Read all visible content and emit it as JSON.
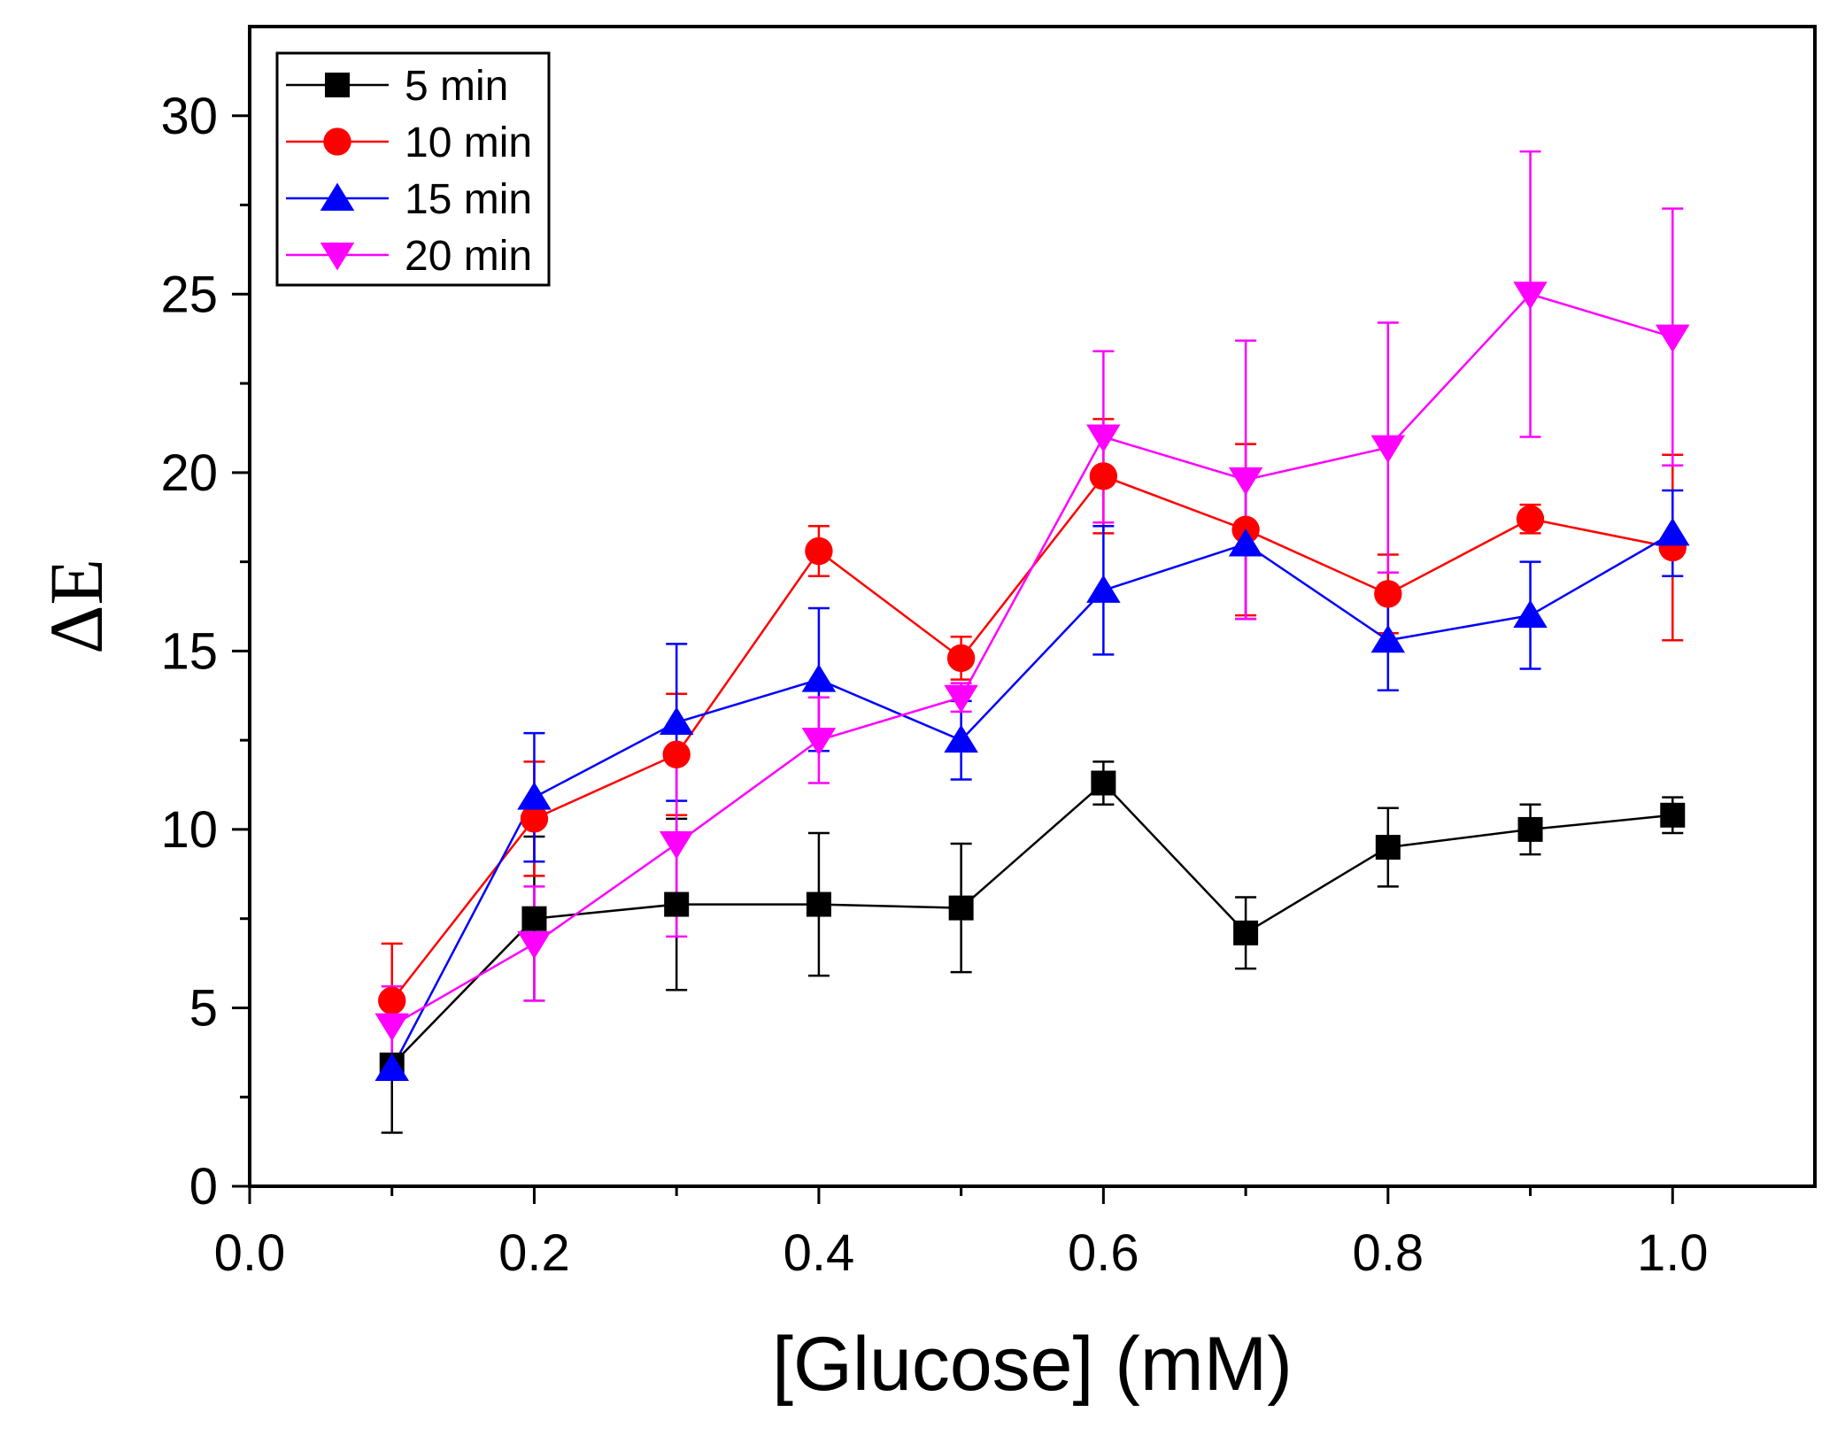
{
  "chart_data": {
    "type": "line",
    "title": "",
    "xlabel": "[Glucose] (mM)",
    "ylabel": "ΔE",
    "xlim": [
      0.0,
      1.1
    ],
    "ylim": [
      0,
      32.5
    ],
    "xticks": [
      0.0,
      0.2,
      0.4,
      0.6,
      0.8,
      1.0
    ],
    "xtick_labels": [
      "0.0",
      "0.2",
      "0.4",
      "0.6",
      "0.8",
      "1.0"
    ],
    "yticks": [
      0,
      5,
      10,
      15,
      20,
      25,
      30
    ],
    "ytick_labels": [
      "0",
      "5",
      "10",
      "15",
      "20",
      "25",
      "30"
    ],
    "grid": false,
    "legend_position": "top-left",
    "x": [
      0.1,
      0.2,
      0.3,
      0.4,
      0.5,
      0.6,
      0.7,
      0.8,
      0.9,
      1.0
    ],
    "series": [
      {
        "name": "5 min",
        "color": "#000000",
        "marker": "square",
        "values": [
          3.4,
          7.5,
          7.9,
          7.9,
          7.8,
          11.3,
          7.1,
          9.5,
          10.0,
          10.4
        ],
        "errors": [
          1.9,
          2.3,
          2.4,
          2.0,
          1.8,
          0.6,
          1.0,
          1.1,
          0.7,
          0.5
        ]
      },
      {
        "name": "10 min",
        "color": "#ff0000",
        "marker": "circle",
        "values": [
          5.2,
          10.3,
          12.1,
          17.8,
          14.8,
          19.9,
          18.4,
          16.6,
          18.7,
          17.9
        ],
        "errors": [
          1.6,
          1.6,
          1.7,
          0.7,
          0.6,
          1.6,
          2.4,
          1.1,
          0.4,
          2.6
        ]
      },
      {
        "name": "15 min",
        "color": "#0000ff",
        "marker": "triangle-up",
        "values": [
          3.3,
          10.9,
          13.0,
          14.2,
          12.5,
          16.7,
          18.0,
          15.3,
          16.0,
          18.3
        ],
        "errors": [
          0.3,
          1.8,
          2.2,
          2.0,
          1.1,
          1.8,
          2.1,
          1.4,
          1.5,
          1.2
        ]
      },
      {
        "name": "20 min",
        "color": "#ff00ff",
        "marker": "triangle-down",
        "values": [
          4.5,
          6.8,
          9.6,
          12.5,
          13.7,
          21.0,
          19.8,
          20.7,
          25.0,
          23.8
        ],
        "errors": [
          1.1,
          1.6,
          2.6,
          1.2,
          0.4,
          2.4,
          3.9,
          3.5,
          4.0,
          3.6
        ]
      }
    ]
  }
}
